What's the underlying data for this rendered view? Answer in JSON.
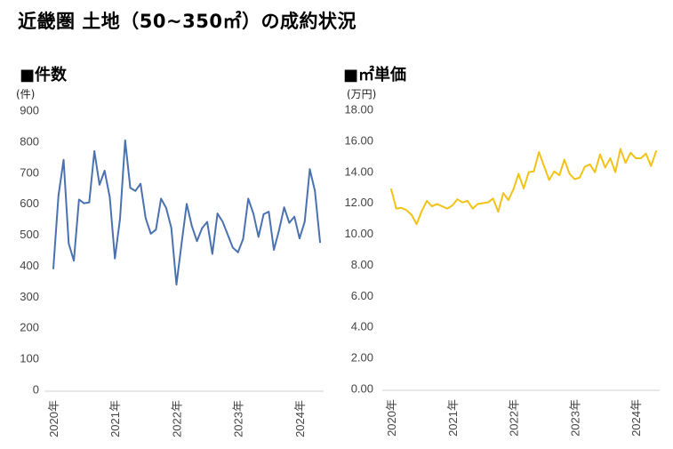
{
  "title": "近畿圏 土地（50~350㎡）の成約状況",
  "chart_data": [
    {
      "type": "line",
      "title": "■件数",
      "unit": "(件)",
      "ylim": [
        0,
        900
      ],
      "yticks": [
        "0",
        "100",
        "200",
        "300",
        "400",
        "500",
        "600",
        "700",
        "800",
        "900"
      ],
      "xtick_labels": [
        "2020年",
        "2021年",
        "2022年",
        "2023年",
        "2024年"
      ],
      "grid": false,
      "series": [
        {
          "color": "#4a72b0",
          "values": [
            390,
            625,
            740,
            470,
            415,
            612,
            600,
            603,
            768,
            660,
            705,
            620,
            422,
            550,
            803,
            650,
            640,
            663,
            552,
            502,
            515,
            615,
            585,
            521,
            338,
            470,
            598,
            527,
            478,
            520,
            540,
            437,
            567,
            541,
            499,
            457,
            442,
            485,
            615,
            567,
            492,
            565,
            573,
            450,
            513,
            587,
            537,
            557,
            487,
            540,
            710,
            640,
            475
          ]
        }
      ]
    },
    {
      "type": "line",
      "title": "■㎡単価",
      "unit": "(万円)",
      "ylim": [
        0,
        18
      ],
      "yticks": [
        "0.00",
        "2.00",
        "4.00",
        "6.00",
        "8.00",
        "10.00",
        "12.00",
        "14.00",
        "16.00",
        "18.00"
      ],
      "xtick_labels": [
        "2020年",
        "2021年",
        "2022年",
        "2023年",
        "2024年"
      ],
      "grid": false,
      "series": [
        {
          "color": "#f2c314",
          "values": [
            12.85,
            11.6,
            11.65,
            11.5,
            11.2,
            10.6,
            11.45,
            12.1,
            11.75,
            11.9,
            11.75,
            11.6,
            11.8,
            12.2,
            12.0,
            12.1,
            11.6,
            11.9,
            11.95,
            12.0,
            12.25,
            11.4,
            12.6,
            12.15,
            12.85,
            13.85,
            12.9,
            13.95,
            14.0,
            15.25,
            14.35,
            13.45,
            14.0,
            13.75,
            14.75,
            13.85,
            13.5,
            13.6,
            14.3,
            14.45,
            13.95,
            15.1,
            14.25,
            14.85,
            13.95,
            15.45,
            14.55,
            15.2,
            14.85,
            14.85,
            15.15,
            14.35,
            15.3
          ]
        }
      ]
    }
  ]
}
